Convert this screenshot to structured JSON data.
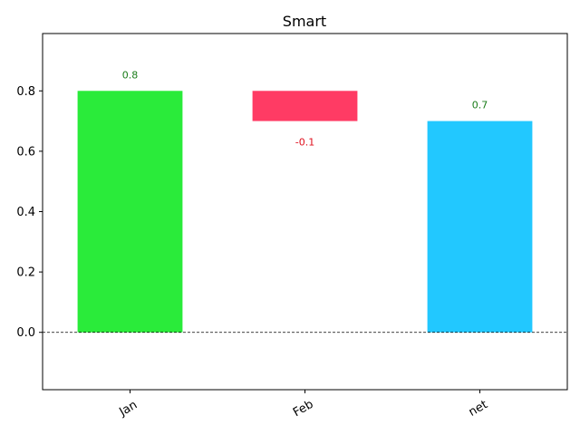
{
  "chart_data": {
    "type": "bar",
    "subtype": "waterfall",
    "title": "Smart",
    "xlabel": "",
    "ylabel": "",
    "categories": [
      "Jan",
      "Feb",
      "net"
    ],
    "bars": [
      {
        "category": "Jan",
        "start": 0.0,
        "end": 0.8,
        "value": 0.8,
        "label": "0.8",
        "kind": "increase",
        "color": "#2aeb3a",
        "label_color": "#1a7d1a"
      },
      {
        "category": "Feb",
        "start": 0.8,
        "end": 0.7,
        "value": -0.1,
        "label": "-0.1",
        "kind": "decrease",
        "color": "#ff3b64",
        "label_color": "#e0101e"
      },
      {
        "category": "net",
        "start": 0.0,
        "end": 0.7,
        "value": 0.7,
        "label": "0.7",
        "kind": "total",
        "color": "#22c8ff",
        "label_color": "#1a7d1a"
      }
    ],
    "ylim": [
      -0.19,
      0.99
    ],
    "yticks": [
      0.0,
      0.2,
      0.4,
      0.6,
      0.8
    ],
    "ytick_labels": [
      "0.0",
      "0.2",
      "0.4",
      "0.6",
      "0.8"
    ],
    "baseline": 0.0,
    "grid": false,
    "legend": "none",
    "xtick_rotation": 30
  }
}
